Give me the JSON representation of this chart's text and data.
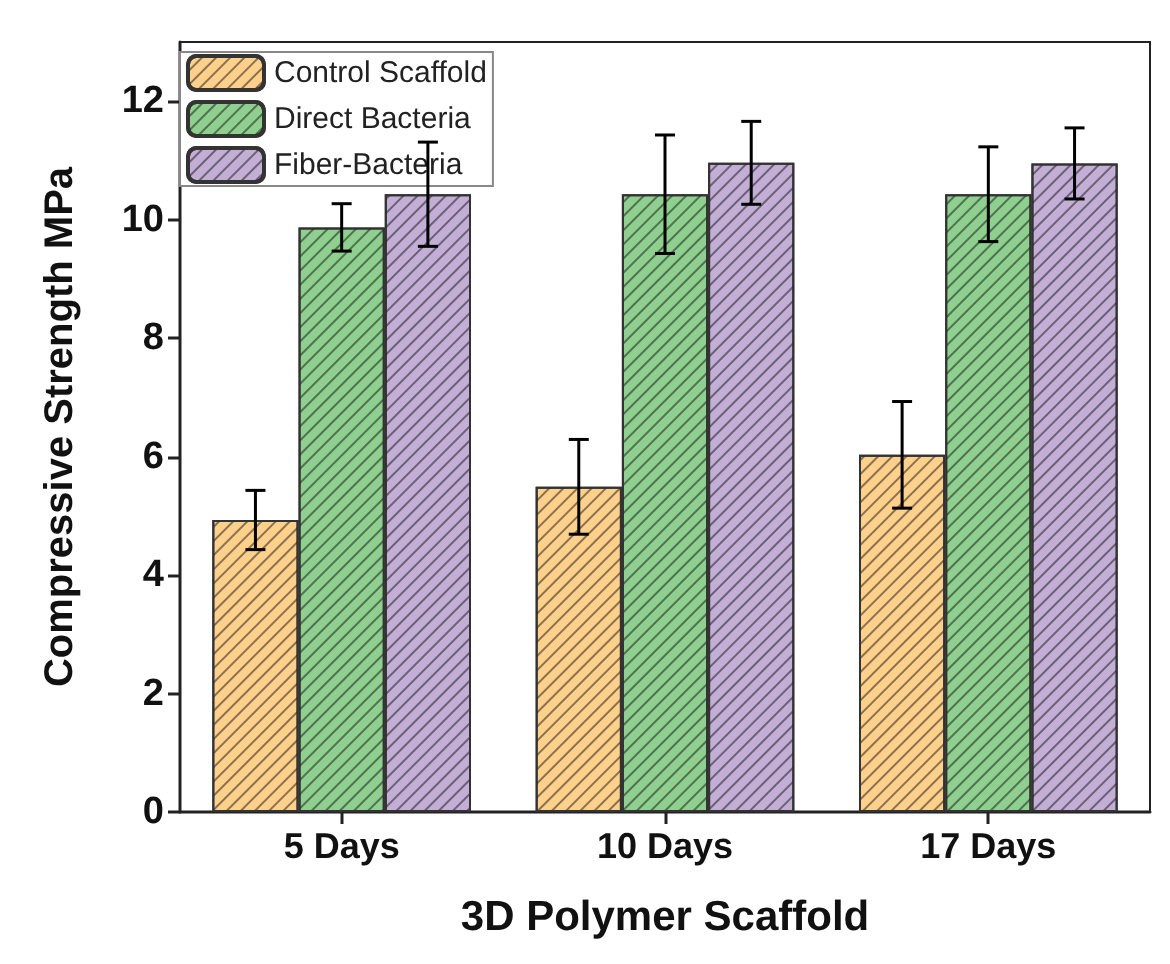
{
  "chart_data": {
    "type": "bar",
    "xlabel": "3D Polymer Scaffold",
    "ylabel": "Compressive Strength MPa",
    "categories": [
      "5 Days",
      "10 Days",
      "17 Days"
    ],
    "series": [
      {
        "name": "Control Scaffold",
        "color": "#fdd08c",
        "values": [
          4.93,
          5.49,
          6.03
        ],
        "errors": [
          0.5,
          0.8,
          0.9
        ]
      },
      {
        "name": "Direct Bacteria",
        "color": "#8fcf8f",
        "values": [
          9.87,
          10.43,
          10.43
        ],
        "errors": [
          0.4,
          1.0,
          0.8
        ]
      },
      {
        "name": "Fiber-Bacteria",
        "color": "#c3aed6",
        "values": [
          10.43,
          10.96,
          10.95
        ],
        "errors": [
          0.88,
          0.7,
          0.6
        ]
      }
    ],
    "ylim": [
      0,
      13
    ],
    "yticks": [
      0,
      2,
      4,
      6,
      8,
      10,
      12
    ],
    "grid": false,
    "legend": "top left"
  }
}
